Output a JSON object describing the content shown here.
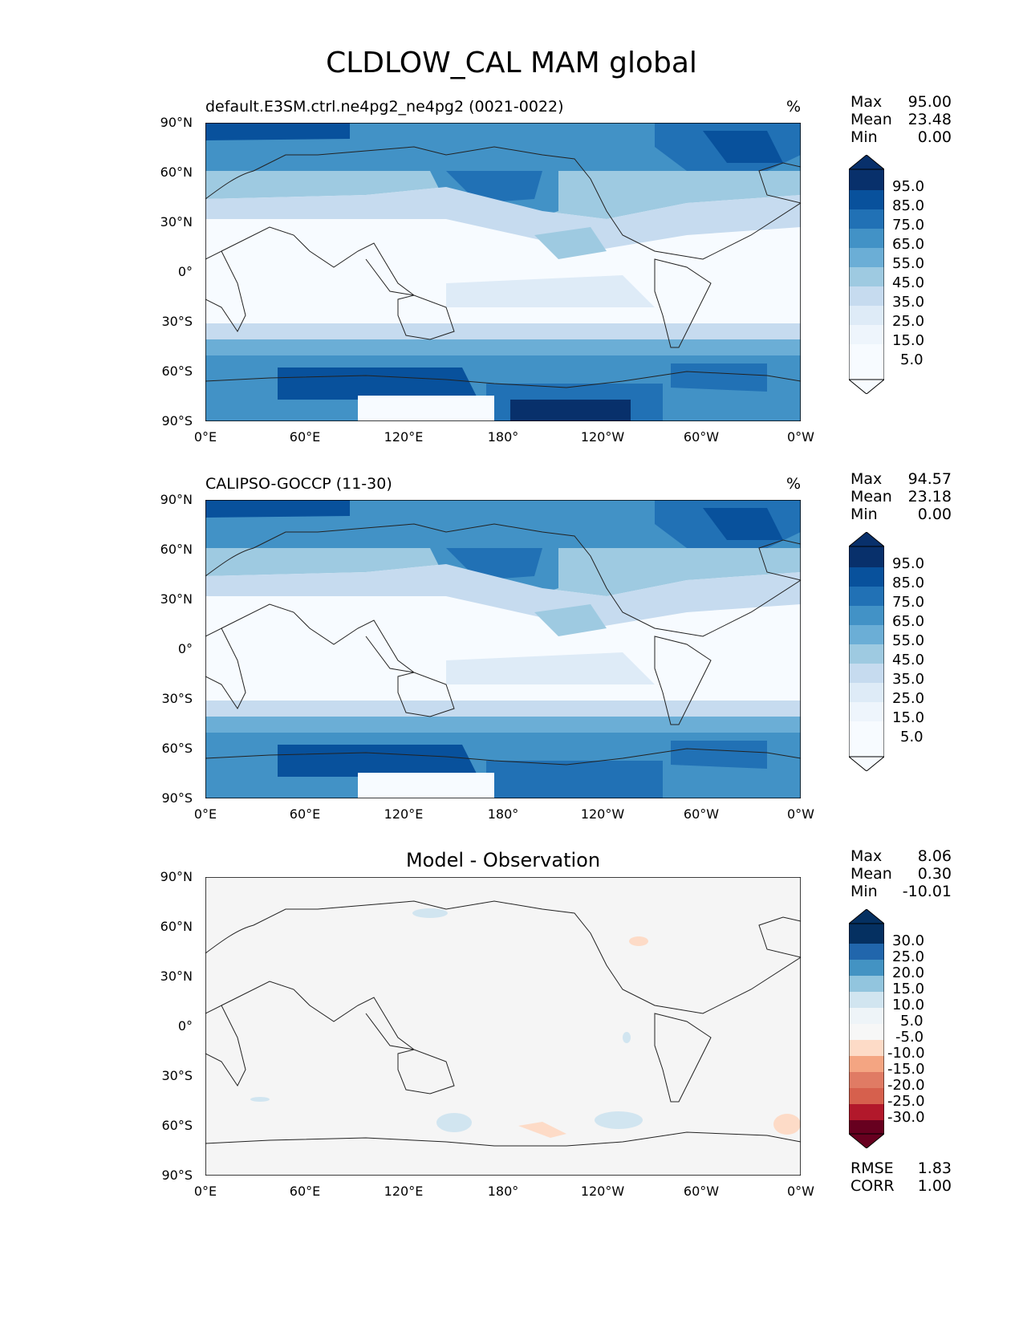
{
  "figure_title": "CLDLOW_CAL MAM global",
  "panels": [
    {
      "title": "default.E3SM.ctrl.ne4pg2_ne4pg2 (0021-0022)",
      "units": "%",
      "stats": {
        "max_label": "Max",
        "max": "95.00",
        "mean_label": "Mean",
        "mean": "23.48",
        "min_label": "Min",
        "min": "0.00"
      },
      "colorbar_labels": [
        "95.0",
        "85.0",
        "75.0",
        "65.0",
        "55.0",
        "45.0",
        "35.0",
        "25.0",
        "15.0",
        "5.0"
      ]
    },
    {
      "title": "CALIPSO-GOCCP (11-30)",
      "units": "%",
      "stats": {
        "max_label": "Max",
        "max": "94.57",
        "mean_label": "Mean",
        "mean": "23.18",
        "min_label": "Min",
        "min": "0.00"
      },
      "colorbar_labels": [
        "95.0",
        "85.0",
        "75.0",
        "65.0",
        "55.0",
        "45.0",
        "35.0",
        "25.0",
        "15.0",
        "5.0"
      ]
    },
    {
      "title": "Model - Observation",
      "units": "",
      "stats": {
        "max_label": "Max",
        "max": "8.06",
        "mean_label": "Mean",
        "mean": "0.30",
        "min_label": "Min",
        "min": "-10.01"
      },
      "colorbar_labels": [
        "30.0",
        "25.0",
        "20.0",
        "15.0",
        "10.0",
        "5.0",
        "-5.0",
        "-10.0",
        "-15.0",
        "-20.0",
        "-25.0",
        "-30.0"
      ],
      "metrics": {
        "rmse_label": "RMSE",
        "rmse": "1.83",
        "corr_label": "CORR",
        "corr": "1.00"
      }
    }
  ],
  "axes": {
    "lat_ticks": [
      "90°N",
      "60°N",
      "30°N",
      "0°",
      "30°S",
      "60°S",
      "90°S"
    ],
    "lon_ticks": [
      "0°E",
      "60°E",
      "120°E",
      "180°",
      "120°W",
      "60°W",
      "0°W"
    ]
  },
  "colors": {
    "blues": [
      "#f7fbff",
      "#deebf7",
      "#c6dbef",
      "#9ecae1",
      "#6baed6",
      "#4292c6",
      "#2171b5",
      "#08519c",
      "#08306b"
    ],
    "diff_blues": [
      "#f7f7f7",
      "#d1e5f0",
      "#92c5de",
      "#4393c3",
      "#2166ac",
      "#053061"
    ],
    "diff_reds": [
      "#fddbc7",
      "#f4a582",
      "#d6604d",
      "#b2182b",
      "#67001f"
    ],
    "neutral": "#f7f7f7"
  }
}
